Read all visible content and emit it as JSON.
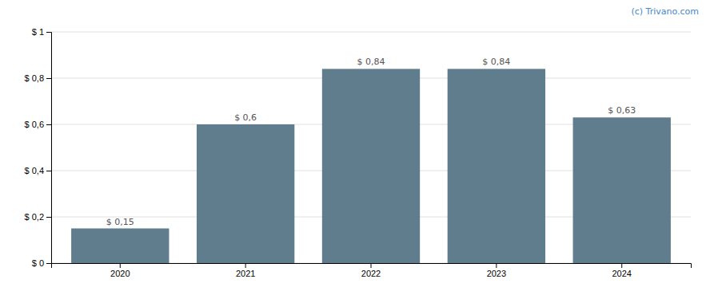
{
  "chart_data": {
    "type": "bar",
    "categories": [
      "2020",
      "2021",
      "2022",
      "2023",
      "2024"
    ],
    "values": [
      0.15,
      0.6,
      0.84,
      0.84,
      0.63
    ],
    "value_labels": [
      "$ 0,15",
      "$ 0,6",
      "$ 0,84",
      "$ 0,84",
      "$ 0,63"
    ],
    "data_labels": true,
    "color": "#5f7d8c",
    "ylim": [
      0,
      1.0
    ],
    "yticks": [
      {
        "value": 0,
        "label": "$ 0"
      },
      {
        "value": 0.2,
        "label": "$ 0,2"
      },
      {
        "value": 0.4,
        "label": "$ 0,4"
      },
      {
        "value": 0.6,
        "label": "$ 0,6"
      },
      {
        "value": 0.8,
        "label": "$ 0,8"
      },
      {
        "value": 1.0,
        "label": "$ 1"
      }
    ],
    "grid": true,
    "annotations": [
      "(c) Trivano.com"
    ]
  }
}
